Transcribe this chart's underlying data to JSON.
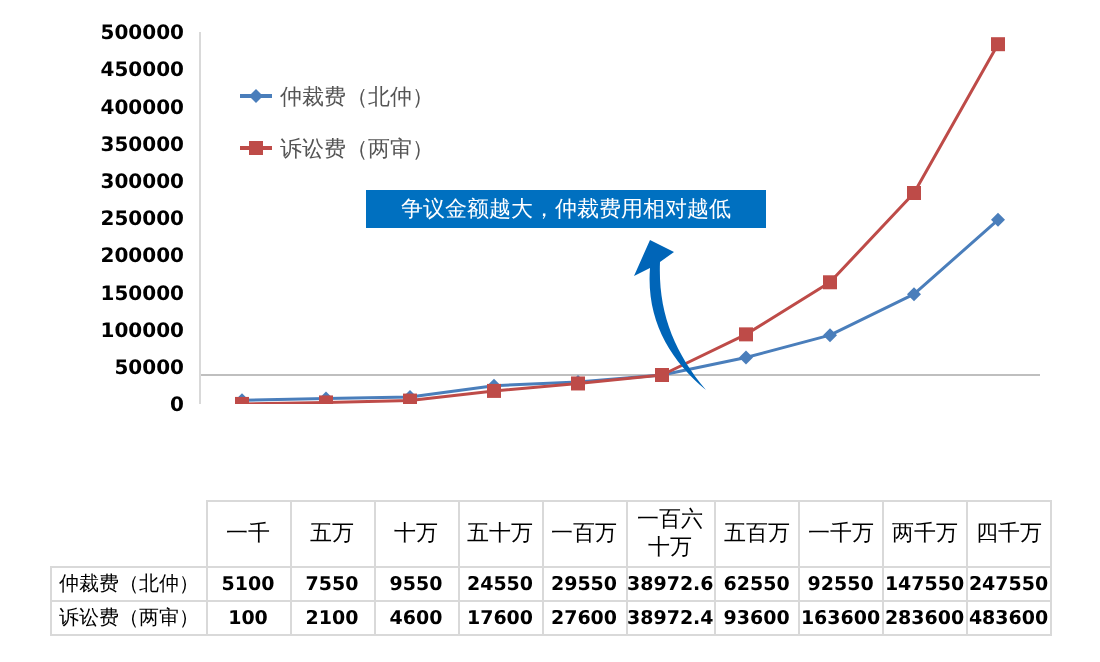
{
  "chart_data": {
    "type": "line",
    "categories": [
      "一千",
      "五万",
      "十万",
      "五十万",
      "一百万",
      "一百六十万",
      "五百万",
      "一千万",
      "两千万",
      "四千万"
    ],
    "series": [
      {
        "name": "仲裁费（北仲）",
        "color": "#4a7ebb",
        "marker": "diamond",
        "values": [
          5100,
          7550,
          9550,
          24550,
          29550,
          38972.6,
          62550,
          92550,
          147550,
          247550
        ]
      },
      {
        "name": "诉讼费（两审）",
        "color": "#be4b48",
        "marker": "square",
        "values": [
          100,
          2100,
          4600,
          17600,
          27600,
          38972.4,
          93600,
          163600,
          283600,
          483600
        ]
      }
    ],
    "ylim": [
      0,
      500000
    ],
    "yticks": [
      0,
      50000,
      100000,
      150000,
      200000,
      250000,
      300000,
      350000,
      400000,
      450000,
      500000
    ],
    "grid": false,
    "legend": "top left",
    "data_labels": true,
    "ref_lines": [
      {
        "axis": "y",
        "value": 39000,
        "color": "#bfbfbf"
      }
    ],
    "annotations": [
      "争议金额越大，仲裁费用相对越低"
    ]
  }
}
